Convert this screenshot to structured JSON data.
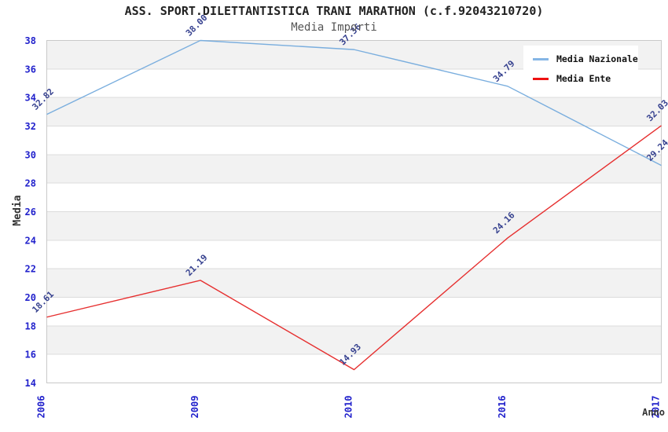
{
  "header": {
    "title": "ASS. SPORT.DILETTANTISTICA TRANI MARATHON (c.f.92043210720)",
    "subtitle": "Media Importi"
  },
  "legend": {
    "items": [
      {
        "label": "Media Nazionale",
        "color": "#85b5e5"
      },
      {
        "label": "Media Ente",
        "color": "#ee1111"
      }
    ]
  },
  "chart_data": {
    "type": "line",
    "title": "ASS. SPORT.DILETTANTISTICA TRANI MARATHON (c.f.92043210720)",
    "subtitle": "Media Importi",
    "categories": [
      "2006",
      "2009",
      "2010",
      "2016",
      "2017"
    ],
    "series": [
      {
        "name": "Media Nazionale",
        "color": "#7aaede",
        "values": [
          32.82,
          38.0,
          37.36,
          34.79,
          29.24
        ],
        "labels": [
          "32.82",
          "38.00",
          "37.36",
          "34.79",
          "29.24"
        ]
      },
      {
        "name": "Media Ente",
        "color": "#e62f2f",
        "values": [
          18.61,
          21.19,
          14.93,
          24.16,
          32.03
        ],
        "labels": [
          "18.61",
          "21.19",
          "14.93",
          "24.16",
          "32.03"
        ]
      }
    ],
    "xlabel": "Anno",
    "ylabel": "Media",
    "ylim": [
      14,
      38
    ],
    "ytick_step": 2,
    "yticks": [
      14,
      16,
      18,
      20,
      22,
      24,
      26,
      28,
      30,
      32,
      34,
      36,
      38
    ],
    "grid": "horizontal-bands-alternating",
    "legend_position": "top-right",
    "colors": {
      "tick_label": "#2222cc",
      "point_label": "#36418f",
      "axis_label": "#333333",
      "band": "#f2f2f2",
      "gridline": "#dcdcdc",
      "border": "#c9c9c9",
      "title": "#222222",
      "subtitle": "#555555",
      "background": "#ffffff"
    }
  }
}
